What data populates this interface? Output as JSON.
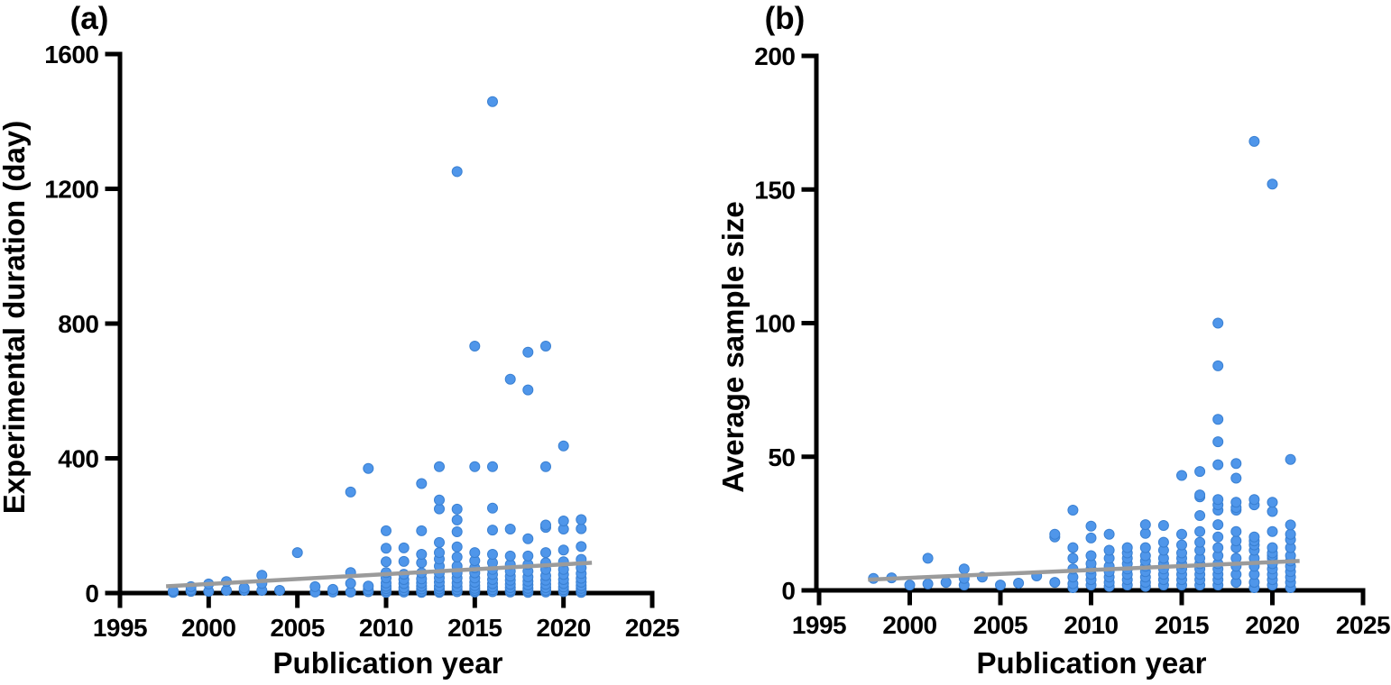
{
  "figure": {
    "background": "#ffffff",
    "point_color": "#4f96ea",
    "point_edge_color": "#3a80d2",
    "trend_color": "#9b9b9b",
    "axis_color": "#000000"
  },
  "chart_data": [
    {
      "type": "scatter",
      "panel_label": "(a)",
      "xlabel": "Publication year",
      "ylabel": "Experimental duration (day)",
      "xlim": [
        1995,
        2025
      ],
      "ylim": [
        0,
        1600
      ],
      "xticks": [
        1995,
        2000,
        2005,
        2010,
        2015,
        2020,
        2025
      ],
      "yticks": [
        0,
        400,
        800,
        1200,
        1600
      ],
      "grid": false,
      "legend": null,
      "trend": {
        "x1": 1997.6,
        "y1": 20,
        "x2": 2021.6,
        "y2": 90
      },
      "points": [
        [
          1998,
          2
        ],
        [
          1998,
          6
        ],
        [
          1999,
          5
        ],
        [
          1999,
          9
        ],
        [
          1999,
          19
        ],
        [
          2000,
          5
        ],
        [
          2000,
          27
        ],
        [
          2001,
          8
        ],
        [
          2001,
          34
        ],
        [
          2002,
          8
        ],
        [
          2002,
          15
        ],
        [
          2003,
          8
        ],
        [
          2003,
          29
        ],
        [
          2003,
          53
        ],
        [
          2004,
          8
        ],
        [
          2005,
          120
        ],
        [
          2006,
          3
        ],
        [
          2006,
          19
        ],
        [
          2007,
          3
        ],
        [
          2007,
          11
        ],
        [
          2008,
          3
        ],
        [
          2008,
          29
        ],
        [
          2008,
          61
        ],
        [
          2008,
          300
        ],
        [
          2009,
          4
        ],
        [
          2009,
          10
        ],
        [
          2009,
          21
        ],
        [
          2009,
          370
        ],
        [
          2010,
          2
        ],
        [
          2010,
          7
        ],
        [
          2010,
          13
        ],
        [
          2010,
          20
        ],
        [
          2010,
          30
        ],
        [
          2010,
          45
        ],
        [
          2010,
          61
        ],
        [
          2010,
          93
        ],
        [
          2010,
          133
        ],
        [
          2010,
          185
        ],
        [
          2011,
          3
        ],
        [
          2011,
          8
        ],
        [
          2011,
          16
        ],
        [
          2011,
          28
        ],
        [
          2011,
          40
        ],
        [
          2011,
          56
        ],
        [
          2011,
          94
        ],
        [
          2011,
          134
        ],
        [
          2012,
          2
        ],
        [
          2012,
          5
        ],
        [
          2012,
          12
        ],
        [
          2012,
          20
        ],
        [
          2012,
          30
        ],
        [
          2012,
          42
        ],
        [
          2012,
          60
        ],
        [
          2012,
          90
        ],
        [
          2012,
          115
        ],
        [
          2012,
          185
        ],
        [
          2012,
          325
        ],
        [
          2013,
          2
        ],
        [
          2013,
          6
        ],
        [
          2013,
          12
        ],
        [
          2013,
          20
        ],
        [
          2013,
          32
        ],
        [
          2013,
          45
        ],
        [
          2013,
          60
        ],
        [
          2013,
          80
        ],
        [
          2013,
          101
        ],
        [
          2013,
          120
        ],
        [
          2013,
          150
        ],
        [
          2013,
          250
        ],
        [
          2013,
          276
        ],
        [
          2013,
          375
        ],
        [
          2014,
          4
        ],
        [
          2014,
          10
        ],
        [
          2014,
          18
        ],
        [
          2014,
          30
        ],
        [
          2014,
          45
        ],
        [
          2014,
          60
        ],
        [
          2014,
          80
        ],
        [
          2014,
          107
        ],
        [
          2014,
          137
        ],
        [
          2014,
          182
        ],
        [
          2014,
          217
        ],
        [
          2014,
          249
        ],
        [
          2014,
          1251
        ],
        [
          2015,
          3
        ],
        [
          2015,
          8
        ],
        [
          2015,
          14
        ],
        [
          2015,
          22
        ],
        [
          2015,
          32
        ],
        [
          2015,
          45
        ],
        [
          2015,
          60
        ],
        [
          2015,
          75
        ],
        [
          2015,
          96
        ],
        [
          2015,
          120
        ],
        [
          2015,
          375
        ],
        [
          2015,
          733
        ],
        [
          2016,
          4
        ],
        [
          2016,
          10
        ],
        [
          2016,
          18
        ],
        [
          2016,
          28
        ],
        [
          2016,
          40
        ],
        [
          2016,
          55
        ],
        [
          2016,
          70
        ],
        [
          2016,
          90
        ],
        [
          2016,
          115
        ],
        [
          2016,
          187
        ],
        [
          2016,
          252
        ],
        [
          2016,
          375
        ],
        [
          2016,
          1459
        ],
        [
          2017,
          3
        ],
        [
          2017,
          8
        ],
        [
          2017,
          16
        ],
        [
          2017,
          26
        ],
        [
          2017,
          38
        ],
        [
          2017,
          50
        ],
        [
          2017,
          65
        ],
        [
          2017,
          85
        ],
        [
          2017,
          110
        ],
        [
          2017,
          190
        ],
        [
          2017,
          635
        ],
        [
          2018,
          2
        ],
        [
          2018,
          7
        ],
        [
          2018,
          14
        ],
        [
          2018,
          24
        ],
        [
          2018,
          35
        ],
        [
          2018,
          48
        ],
        [
          2018,
          65
        ],
        [
          2018,
          85
        ],
        [
          2018,
          110
        ],
        [
          2018,
          161
        ],
        [
          2018,
          603
        ],
        [
          2018,
          715
        ],
        [
          2019,
          3
        ],
        [
          2019,
          8
        ],
        [
          2019,
          16
        ],
        [
          2019,
          26
        ],
        [
          2019,
          38
        ],
        [
          2019,
          52
        ],
        [
          2019,
          70
        ],
        [
          2019,
          90
        ],
        [
          2019,
          120
        ],
        [
          2019,
          195
        ],
        [
          2019,
          202
        ],
        [
          2019,
          375
        ],
        [
          2019,
          733
        ],
        [
          2020,
          4
        ],
        [
          2020,
          10
        ],
        [
          2020,
          18
        ],
        [
          2020,
          28
        ],
        [
          2020,
          40
        ],
        [
          2020,
          55
        ],
        [
          2020,
          70
        ],
        [
          2020,
          93
        ],
        [
          2020,
          128
        ],
        [
          2020,
          190
        ],
        [
          2020,
          214
        ],
        [
          2020,
          437
        ],
        [
          2021,
          2
        ],
        [
          2021,
          7
        ],
        [
          2021,
          14
        ],
        [
          2021,
          22
        ],
        [
          2021,
          32
        ],
        [
          2021,
          44
        ],
        [
          2021,
          58
        ],
        [
          2021,
          75
        ],
        [
          2021,
          100
        ],
        [
          2021,
          138
        ],
        [
          2021,
          191
        ],
        [
          2021,
          218
        ]
      ]
    },
    {
      "type": "scatter",
      "panel_label": "(b)",
      "xlabel": "Publication year",
      "ylabel": "Average sample size",
      "xlim": [
        1995,
        2025
      ],
      "ylim": [
        0,
        200
      ],
      "xticks": [
        1995,
        2000,
        2005,
        2010,
        2015,
        2020,
        2025
      ],
      "yticks": [
        0,
        50,
        100,
        150,
        200
      ],
      "grid": false,
      "legend": null,
      "trend": {
        "x1": 1997.7,
        "y1": 4,
        "x2": 2021.5,
        "y2": 11
      },
      "points": [
        [
          1998,
          4.5
        ],
        [
          1999,
          4.7
        ],
        [
          2000,
          2
        ],
        [
          2001,
          2.4
        ],
        [
          2001,
          12
        ],
        [
          2002,
          3
        ],
        [
          2003,
          2
        ],
        [
          2003,
          4.5
        ],
        [
          2003,
          8
        ],
        [
          2004,
          5
        ],
        [
          2005,
          2
        ],
        [
          2006,
          2.7
        ],
        [
          2007,
          5.4
        ],
        [
          2008,
          3
        ],
        [
          2008,
          20
        ],
        [
          2008,
          21
        ],
        [
          2009,
          1
        ],
        [
          2009,
          2.5
        ],
        [
          2009,
          5
        ],
        [
          2009,
          8
        ],
        [
          2009,
          12
        ],
        [
          2009,
          16
        ],
        [
          2009,
          30
        ],
        [
          2010,
          2
        ],
        [
          2010,
          4
        ],
        [
          2010,
          6
        ],
        [
          2010,
          8
        ],
        [
          2010,
          10
        ],
        [
          2010,
          13
        ],
        [
          2010,
          19.6
        ],
        [
          2010,
          24
        ],
        [
          2011,
          1.5
        ],
        [
          2011,
          3
        ],
        [
          2011,
          5
        ],
        [
          2011,
          7
        ],
        [
          2011,
          9
        ],
        [
          2011,
          12
        ],
        [
          2011,
          15
        ],
        [
          2011,
          21
        ],
        [
          2012,
          2
        ],
        [
          2012,
          4
        ],
        [
          2012,
          6
        ],
        [
          2012,
          8
        ],
        [
          2012,
          10
        ],
        [
          2012,
          12
        ],
        [
          2012,
          14
        ],
        [
          2012,
          16
        ],
        [
          2013,
          1.5
        ],
        [
          2013,
          3
        ],
        [
          2013,
          5
        ],
        [
          2013,
          7
        ],
        [
          2013,
          9
        ],
        [
          2013,
          11
        ],
        [
          2013,
          13
        ],
        [
          2013,
          16
        ],
        [
          2013,
          21.3
        ],
        [
          2013,
          24.6
        ],
        [
          2014,
          2
        ],
        [
          2014,
          4
        ],
        [
          2014,
          6
        ],
        [
          2014,
          8
        ],
        [
          2014,
          10
        ],
        [
          2014,
          12
        ],
        [
          2014,
          15
        ],
        [
          2014,
          18
        ],
        [
          2014,
          24.3
        ],
        [
          2015,
          2
        ],
        [
          2015,
          4
        ],
        [
          2015,
          6
        ],
        [
          2015,
          8
        ],
        [
          2015,
          10
        ],
        [
          2015,
          12
        ],
        [
          2015,
          14
        ],
        [
          2015,
          17
        ],
        [
          2015,
          21
        ],
        [
          2015,
          43
        ],
        [
          2016,
          2
        ],
        [
          2016,
          4
        ],
        [
          2016,
          6
        ],
        [
          2016,
          8
        ],
        [
          2016,
          10
        ],
        [
          2016,
          12
        ],
        [
          2016,
          15
        ],
        [
          2016,
          18
        ],
        [
          2016,
          22
        ],
        [
          2016,
          28
        ],
        [
          2016,
          35
        ],
        [
          2016,
          35.7
        ],
        [
          2016,
          44.5
        ],
        [
          2017,
          2
        ],
        [
          2017,
          4
        ],
        [
          2017,
          6
        ],
        [
          2017,
          8
        ],
        [
          2017,
          10
        ],
        [
          2017,
          13
        ],
        [
          2017,
          16
        ],
        [
          2017,
          20
        ],
        [
          2017,
          24.6
        ],
        [
          2017,
          30
        ],
        [
          2017,
          32
        ],
        [
          2017,
          34
        ],
        [
          2017,
          47
        ],
        [
          2017,
          55.6
        ],
        [
          2017,
          64
        ],
        [
          2017,
          84
        ],
        [
          2017,
          100
        ],
        [
          2018,
          3
        ],
        [
          2018,
          6
        ],
        [
          2018,
          9
        ],
        [
          2018,
          12
        ],
        [
          2018,
          16
        ],
        [
          2018,
          18.5
        ],
        [
          2018,
          22
        ],
        [
          2018,
          30
        ],
        [
          2018,
          31
        ],
        [
          2018,
          33
        ],
        [
          2018,
          42
        ],
        [
          2018,
          47.5
        ],
        [
          2019,
          1
        ],
        [
          2019,
          3
        ],
        [
          2019,
          6
        ],
        [
          2019,
          9
        ],
        [
          2019,
          12
        ],
        [
          2019,
          15
        ],
        [
          2019,
          17
        ],
        [
          2019,
          18.5
        ],
        [
          2019,
          20
        ],
        [
          2019,
          32
        ],
        [
          2019,
          34
        ],
        [
          2019,
          168
        ],
        [
          2020,
          2
        ],
        [
          2020,
          4
        ],
        [
          2020,
          6
        ],
        [
          2020,
          8
        ],
        [
          2020,
          10
        ],
        [
          2020,
          12
        ],
        [
          2020,
          13
        ],
        [
          2020,
          14
        ],
        [
          2020,
          16
        ],
        [
          2020,
          22
        ],
        [
          2020,
          29.5
        ],
        [
          2020,
          33
        ],
        [
          2020,
          152
        ],
        [
          2021,
          1
        ],
        [
          2021,
          3
        ],
        [
          2021,
          5
        ],
        [
          2021,
          7
        ],
        [
          2021,
          9
        ],
        [
          2021,
          11
        ],
        [
          2021,
          13
        ],
        [
          2021,
          16
        ],
        [
          2021,
          19
        ],
        [
          2021,
          21
        ],
        [
          2021,
          24.5
        ],
        [
          2021,
          49
        ]
      ]
    }
  ]
}
